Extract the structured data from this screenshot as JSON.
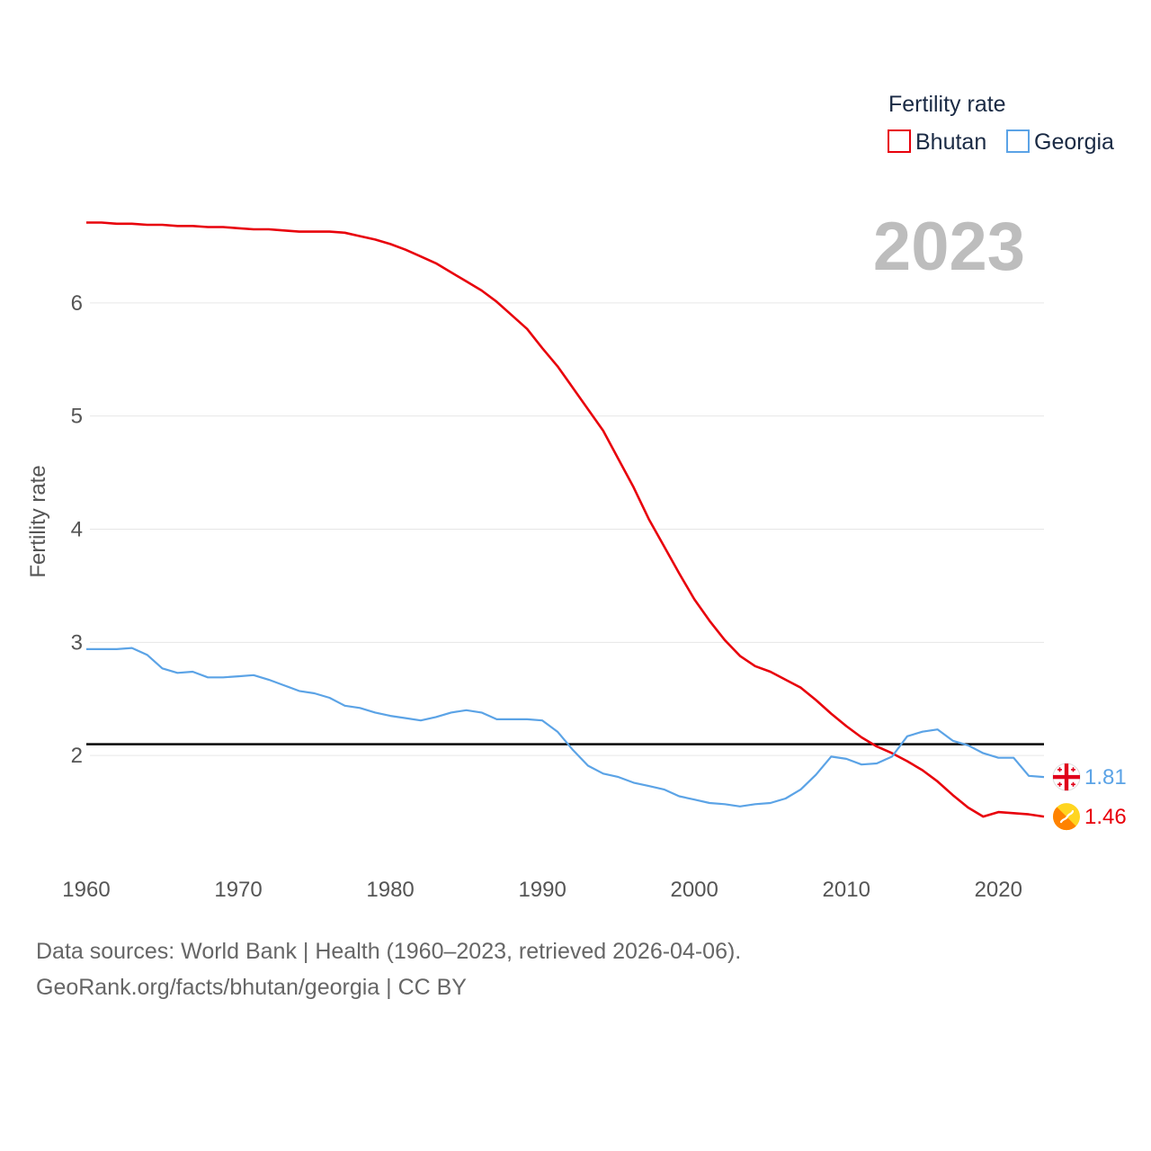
{
  "chart_data": {
    "type": "line",
    "xlabel": "",
    "ylabel": "Fertility rate",
    "xlim": [
      1960,
      2023
    ],
    "ylim": [
      1.0,
      7.0
    ],
    "x_ticks": [
      1960,
      1970,
      1980,
      1990,
      2000,
      2010,
      2020
    ],
    "y_ticks": [
      2,
      3,
      4,
      5,
      6
    ],
    "grid": true,
    "current_year": "2023",
    "reference_line": {
      "y": 2.1,
      "color": "#000000"
    },
    "legend": {
      "title": "Fertility rate",
      "position": "top-right"
    },
    "x": [
      1960,
      1961,
      1962,
      1963,
      1964,
      1965,
      1966,
      1967,
      1968,
      1969,
      1970,
      1971,
      1972,
      1973,
      1974,
      1975,
      1976,
      1977,
      1978,
      1979,
      1980,
      1981,
      1982,
      1983,
      1984,
      1985,
      1986,
      1987,
      1988,
      1989,
      1990,
      1991,
      1992,
      1993,
      1994,
      1995,
      1996,
      1997,
      1998,
      1999,
      2000,
      2001,
      2002,
      2003,
      2004,
      2005,
      2006,
      2007,
      2008,
      2009,
      2010,
      2011,
      2012,
      2013,
      2014,
      2015,
      2016,
      2017,
      2018,
      2019,
      2020,
      2021,
      2022,
      2023
    ],
    "series": [
      {
        "name": "Bhutan",
        "color": "#e8000b",
        "end_label": "1.46",
        "icon": "bhutan-flag-icon",
        "values": [
          6.71,
          6.71,
          6.7,
          6.7,
          6.69,
          6.69,
          6.68,
          6.68,
          6.67,
          6.67,
          6.66,
          6.65,
          6.65,
          6.64,
          6.63,
          6.63,
          6.63,
          6.62,
          6.59,
          6.56,
          6.52,
          6.47,
          6.41,
          6.35,
          6.27,
          6.19,
          6.11,
          6.01,
          5.89,
          5.77,
          5.6,
          5.44,
          5.25,
          5.06,
          4.87,
          4.62,
          4.37,
          4.09,
          3.85,
          3.61,
          3.38,
          3.19,
          3.02,
          2.88,
          2.79,
          2.74,
          2.67,
          2.6,
          2.49,
          2.37,
          2.26,
          2.16,
          2.08,
          2.02,
          1.95,
          1.87,
          1.77,
          1.65,
          1.54,
          1.46,
          1.5,
          1.49,
          1.48,
          1.46
        ]
      },
      {
        "name": "Georgia",
        "color": "#5ba3e6",
        "end_label": "1.81",
        "icon": "georgia-flag-icon",
        "values": [
          2.94,
          2.94,
          2.94,
          2.95,
          2.89,
          2.77,
          2.73,
          2.74,
          2.69,
          2.69,
          2.7,
          2.71,
          2.67,
          2.62,
          2.57,
          2.55,
          2.51,
          2.44,
          2.42,
          2.38,
          2.35,
          2.33,
          2.31,
          2.34,
          2.38,
          2.4,
          2.38,
          2.32,
          2.32,
          2.32,
          2.31,
          2.21,
          2.05,
          1.91,
          1.84,
          1.81,
          1.76,
          1.73,
          1.7,
          1.64,
          1.61,
          1.58,
          1.57,
          1.55,
          1.57,
          1.58,
          1.62,
          1.7,
          1.83,
          1.99,
          1.97,
          1.92,
          1.93,
          1.99,
          2.17,
          2.21,
          2.23,
          2.13,
          2.09,
          2.02,
          1.98,
          1.98,
          1.82,
          1.81
        ]
      }
    ]
  },
  "footer": {
    "line1": "Data sources: World Bank | Health (1960–2023, retrieved 2026-04-06).",
    "line2": "GeoRank.org/facts/bhutan/georgia | CC BY"
  }
}
